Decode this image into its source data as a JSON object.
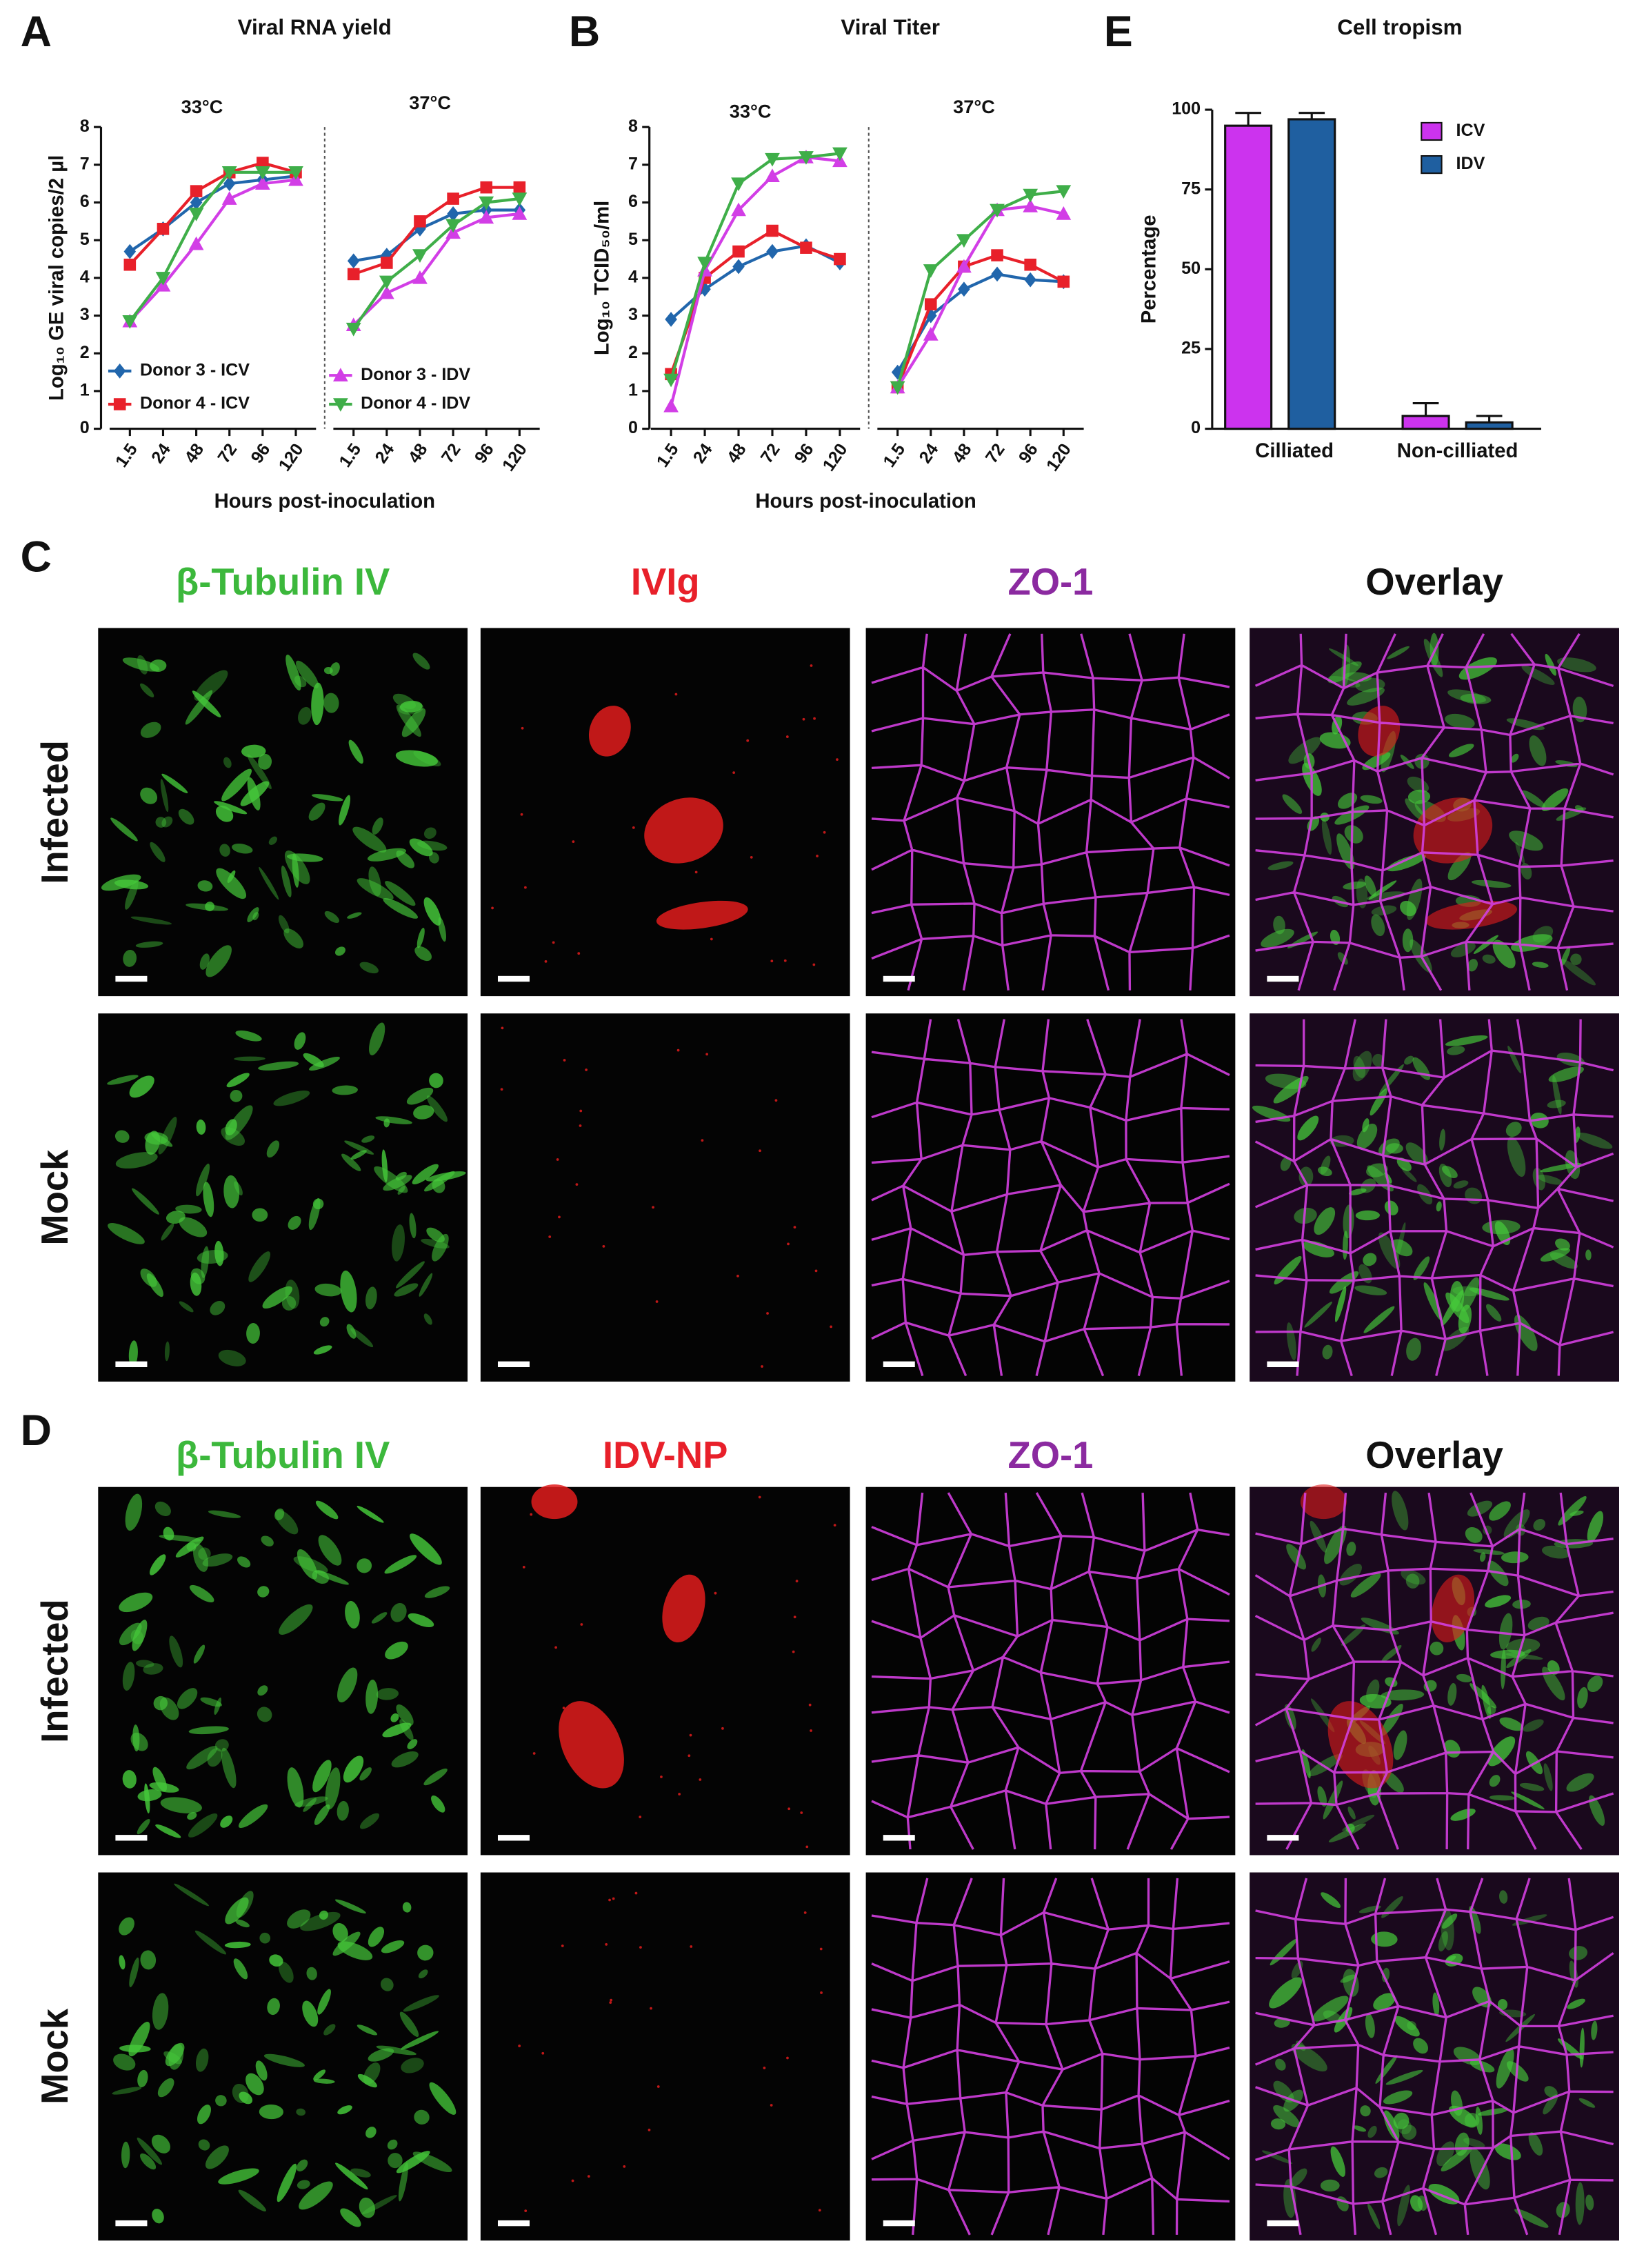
{
  "chart_data": [
    {
      "type": "line",
      "panel": "A",
      "title": "Viral RNA yield",
      "y_label": "Log₁₀ GE viral copies/2 µl",
      "x_label": "Hours post-inoculation",
      "groups": [
        "33°C",
        "37°C"
      ],
      "categories": [
        "1.5",
        "24",
        "48",
        "72",
        "96",
        "120"
      ],
      "ylim": [
        0,
        8
      ],
      "yticks": [
        0,
        1,
        2,
        3,
        4,
        5,
        6,
        7,
        8
      ],
      "legend": "lower",
      "series": [
        {
          "name": "Donor 3 - ICV",
          "color": "#2166ac",
          "marker": "diamond",
          "values": [
            [
              4.7,
              5.3,
              6.0,
              6.5,
              6.6,
              6.7
            ],
            [
              4.45,
              4.6,
              5.3,
              5.7,
              5.8,
              5.8
            ]
          ]
        },
        {
          "name": "Donor 4 - ICV",
          "color": "#e8202a",
          "marker": "square",
          "values": [
            [
              4.35,
              5.3,
              6.3,
              6.8,
              7.05,
              6.8
            ],
            [
              4.1,
              4.4,
              5.5,
              6.1,
              6.4,
              6.4
            ]
          ]
        },
        {
          "name": "Donor 3 - IDV",
          "color": "#d23ee6",
          "marker": "triangle-up",
          "values": [
            [
              2.85,
              3.8,
              4.9,
              6.1,
              6.5,
              6.6
            ],
            [
              2.75,
              3.6,
              4.0,
              5.2,
              5.6,
              5.7
            ]
          ]
        },
        {
          "name": "Donor 4 - IDV",
          "color": "#3fae49",
          "marker": "triangle-down",
          "values": [
            [
              2.85,
              4.0,
              5.7,
              6.8,
              6.8,
              6.8
            ],
            [
              2.65,
              3.9,
              4.6,
              5.4,
              6.0,
              6.1
            ]
          ]
        }
      ]
    },
    {
      "type": "line",
      "panel": "B",
      "title": "Viral Titer",
      "y_label": "Log₁₀ TCID₅₀/ml",
      "x_label": "Hours post-inoculation",
      "groups": [
        "33°C",
        "37°C"
      ],
      "categories": [
        "1.5",
        "24",
        "48",
        "72",
        "96",
        "120"
      ],
      "ylim": [
        0,
        8
      ],
      "yticks": [
        0,
        1,
        2,
        3,
        4,
        5,
        6,
        7,
        8
      ],
      "series": [
        {
          "color": "#2166ac",
          "marker": "diamond",
          "values": [
            [
              2.9,
              3.7,
              4.3,
              4.7,
              4.85,
              4.4
            ],
            [
              1.5,
              3.0,
              3.7,
              4.1,
              3.95,
              3.9
            ]
          ]
        },
        {
          "color": "#e8202a",
          "marker": "square",
          "values": [
            [
              1.45,
              4.0,
              4.7,
              5.25,
              4.8,
              4.5
            ],
            [
              1.1,
              3.3,
              4.3,
              4.6,
              4.35,
              3.9
            ]
          ]
        },
        {
          "color": "#d23ee6",
          "marker": "triangle-up",
          "values": [
            [
              0.6,
              4.2,
              5.8,
              6.7,
              7.2,
              7.1
            ],
            [
              1.1,
              2.5,
              4.3,
              5.8,
              5.9,
              5.7
            ]
          ]
        },
        {
          "color": "#3fae49",
          "marker": "triangle-down",
          "values": [
            [
              1.3,
              4.4,
              6.5,
              7.15,
              7.2,
              7.3
            ],
            [
              1.1,
              4.2,
              5.0,
              5.8,
              6.2,
              6.3
            ]
          ]
        }
      ]
    },
    {
      "type": "bar",
      "panel": "E",
      "title": "Cell tropism",
      "y_label": "Percentage",
      "categories": [
        "Cilliated",
        "Non-cilliated"
      ],
      "ylim": [
        0,
        100
      ],
      "yticks": [
        0,
        25,
        50,
        75,
        100
      ],
      "legend": "upper right",
      "series": [
        {
          "name": "ICV",
          "color": "#cc33ee",
          "values": [
            95,
            4
          ],
          "errors": [
            4,
            4
          ]
        },
        {
          "name": "IDV",
          "color": "#1f5fa0",
          "values": [
            97,
            2
          ],
          "errors": [
            2,
            2
          ]
        }
      ]
    }
  ],
  "micrographs": [
    {
      "panel": "C",
      "columns": [
        "β-Tubulin IV",
        "IVIg",
        "ZO-1",
        "Overlay"
      ],
      "column_colors": [
        "#3cb83c",
        "#e8202a",
        "#8b2aa0",
        "#111111"
      ],
      "rows": [
        "Infected",
        "Mock"
      ]
    },
    {
      "panel": "D",
      "columns": [
        "β-Tubulin IV",
        "IDV-NP",
        "ZO-1",
        "Overlay"
      ],
      "column_colors": [
        "#3cb83c",
        "#e8202a",
        "#8b2aa0",
        "#111111"
      ],
      "rows": [
        "Infected",
        "Mock"
      ]
    }
  ]
}
